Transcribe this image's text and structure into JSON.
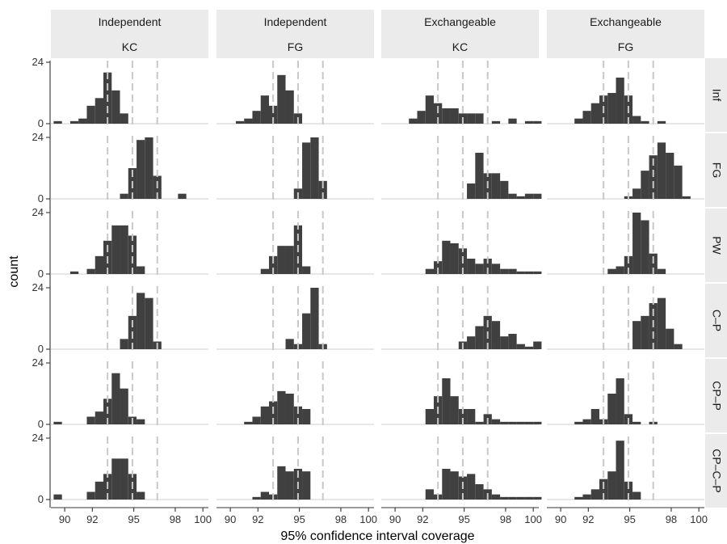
{
  "chart_data": {
    "type": "bar",
    "xlabel": "95% confidence interval coverage",
    "ylabel": "count",
    "xlim": [
      89,
      100.4
    ],
    "ylim": [
      0,
      24
    ],
    "x_ticks": [
      "90",
      "92",
      "95",
      "98",
      "100"
    ],
    "y_ticks": [
      "0",
      "24"
    ],
    "reference_lines": [
      93.1,
      94.9,
      96.7
    ],
    "bin_width": 0.6,
    "bin_start": 89.2,
    "columns": [
      {
        "top": "Independent",
        "bottom": "KC"
      },
      {
        "top": "Independent",
        "bottom": "FG"
      },
      {
        "top": "Exchangeable",
        "bottom": "KC"
      },
      {
        "top": "Exchangeable",
        "bottom": "FG"
      }
    ],
    "rows": [
      "Inf",
      "FG",
      "PW",
      "C–P",
      "CP–P",
      "CP–C–P"
    ],
    "panels": [
      [
        [
          1,
          0,
          1,
          2,
          7,
          10,
          20,
          13,
          4,
          0,
          0,
          0,
          0,
          0,
          0,
          0,
          0,
          0,
          0
        ],
        [
          0,
          0,
          0,
          0,
          0,
          0,
          0,
          0,
          2,
          12,
          23,
          24,
          9,
          0,
          0,
          2,
          0,
          0,
          0
        ],
        [
          0,
          0,
          1,
          0,
          2,
          7,
          13,
          19,
          19,
          15,
          3,
          0,
          0,
          0,
          0,
          0,
          0,
          0,
          0
        ],
        [
          0,
          0,
          0,
          0,
          0,
          0,
          0,
          0,
          4,
          13,
          22,
          20,
          3,
          0,
          0,
          0,
          0,
          0,
          0
        ],
        [
          1,
          0,
          0,
          0,
          3,
          5,
          10,
          20,
          14,
          3,
          2,
          0,
          0,
          0,
          0,
          0,
          0,
          0,
          0
        ],
        [
          2,
          0,
          0,
          0,
          3,
          7,
          10,
          16,
          16,
          10,
          3,
          0,
          0,
          0,
          0,
          0,
          0,
          0,
          0
        ]
      ],
      [
        [
          0,
          0,
          1,
          2,
          5,
          11,
          7,
          19,
          13,
          4,
          0,
          0,
          0,
          0,
          0,
          0,
          0,
          0,
          0
        ],
        [
          0,
          0,
          0,
          0,
          0,
          0,
          0,
          0,
          0,
          4,
          22,
          24,
          7,
          0,
          0,
          0,
          0,
          0,
          0
        ],
        [
          0,
          0,
          0,
          0,
          0,
          2,
          7,
          11,
          11,
          19,
          3,
          0,
          0,
          0,
          0,
          0,
          0,
          0,
          0
        ],
        [
          0,
          0,
          0,
          0,
          0,
          0,
          0,
          0,
          4,
          2,
          14,
          24,
          2,
          0,
          0,
          0,
          0,
          0,
          0
        ],
        [
          0,
          0,
          0,
          1,
          3,
          7,
          9,
          13,
          12,
          7,
          6,
          0,
          0,
          0,
          0,
          0,
          0,
          0,
          0
        ],
        [
          0,
          0,
          0,
          0,
          1,
          3,
          2,
          13,
          11,
          12,
          11,
          0,
          0,
          0,
          0,
          0,
          0,
          0,
          0
        ]
      ],
      [
        [
          0,
          0,
          0,
          2,
          5,
          11,
          8,
          6,
          6,
          4,
          4,
          4,
          0,
          1,
          0,
          2,
          0,
          1,
          1
        ],
        [
          0,
          0,
          0,
          0,
          0,
          0,
          0,
          0,
          0,
          0,
          6,
          18,
          10,
          10,
          7,
          2,
          1,
          2,
          2
        ],
        [
          0,
          0,
          0,
          0,
          0,
          2,
          5,
          13,
          12,
          10,
          6,
          4,
          6,
          4,
          2,
          2,
          1,
          1,
          1
        ],
        [
          0,
          0,
          0,
          0,
          0,
          0,
          0,
          0,
          0,
          3,
          5,
          9,
          13,
          11,
          5,
          6,
          2,
          1,
          3
        ],
        [
          0,
          0,
          0,
          0,
          0,
          6,
          11,
          18,
          11,
          6,
          6,
          1,
          4,
          2,
          1,
          1,
          1,
          1,
          1
        ],
        [
          0,
          0,
          0,
          0,
          0,
          4,
          2,
          12,
          11,
          9,
          10,
          6,
          4,
          2,
          1,
          1,
          1,
          1,
          1
        ]
      ],
      [
        [
          0,
          0,
          0,
          2,
          5,
          8,
          11,
          12,
          18,
          11,
          3,
          1,
          0,
          1,
          0,
          0,
          0,
          0,
          0
        ],
        [
          0,
          0,
          0,
          0,
          0,
          0,
          0,
          0,
          0,
          1,
          4,
          11,
          17,
          22,
          18,
          13,
          1,
          0,
          0
        ],
        [
          0,
          0,
          0,
          0,
          0,
          0,
          0,
          2,
          3,
          7,
          24,
          21,
          8,
          2,
          0,
          0,
          0,
          0,
          0
        ],
        [
          0,
          0,
          0,
          0,
          0,
          0,
          0,
          0,
          0,
          0,
          11,
          13,
          18,
          20,
          8,
          2,
          0,
          0,
          0
        ],
        [
          0,
          0,
          0,
          1,
          2,
          6,
          2,
          12,
          18,
          4,
          1,
          0,
          1,
          0,
          0,
          0,
          0,
          0,
          0
        ],
        [
          0,
          0,
          0,
          1,
          2,
          4,
          8,
          11,
          23,
          7,
          3,
          0,
          0,
          0,
          0,
          0,
          0,
          0,
          0
        ]
      ]
    ]
  }
}
